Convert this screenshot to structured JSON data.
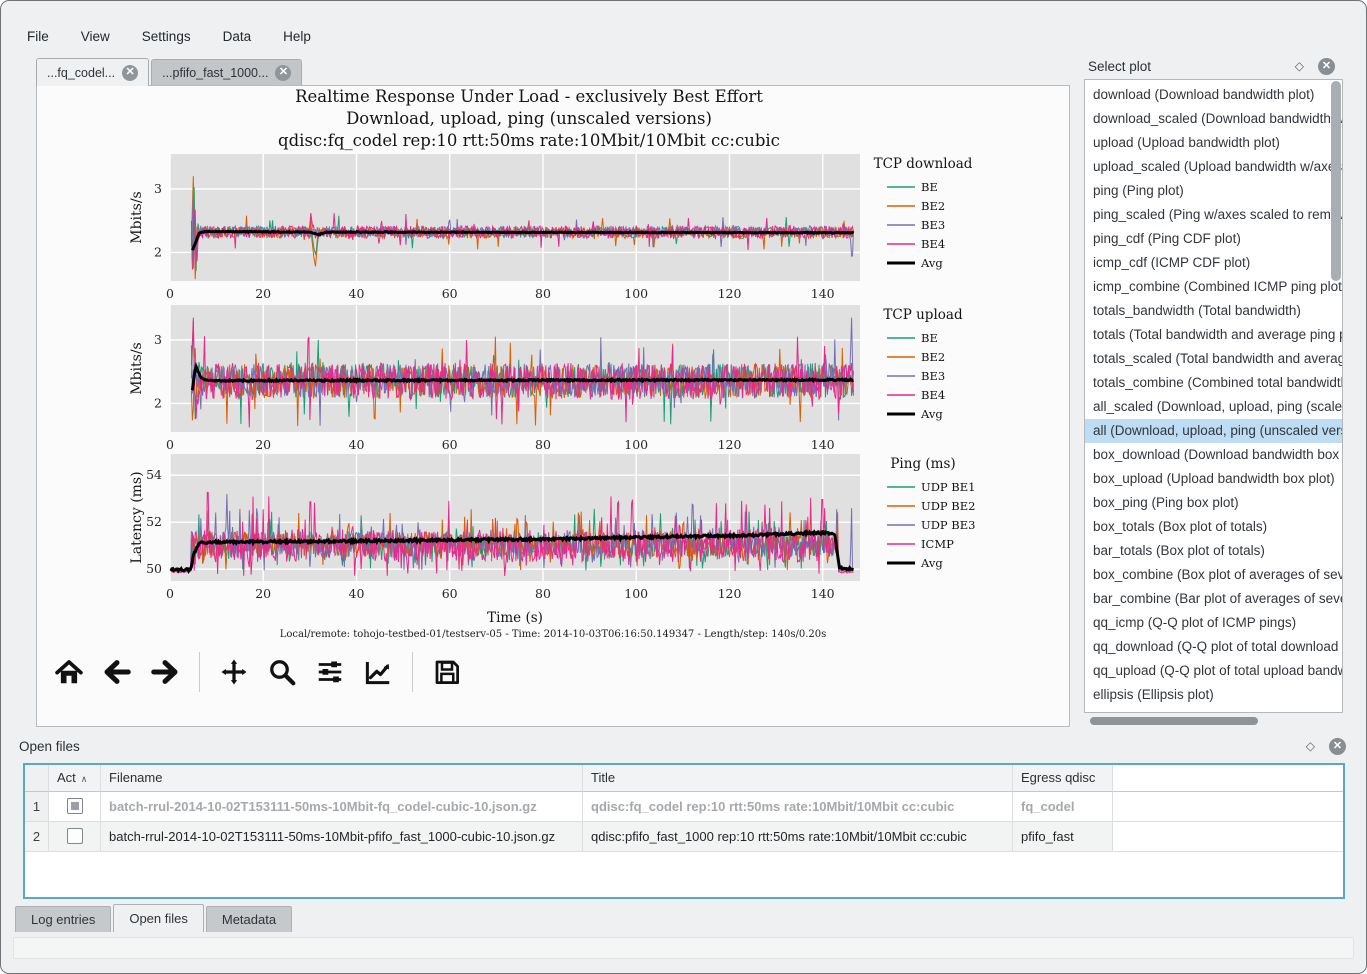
{
  "menu": {
    "items": [
      "File",
      "View",
      "Settings",
      "Data",
      "Help"
    ]
  },
  "tabs": [
    {
      "label": "...fq_codel...",
      "active": true
    },
    {
      "label": "...pfifo_fast_1000...",
      "active": false
    }
  ],
  "toolbar": {
    "icons": [
      "home",
      "back",
      "forward",
      "sep",
      "pan",
      "zoom",
      "subplots",
      "customize",
      "sep",
      "save"
    ]
  },
  "select_plot_panel": {
    "title": "Select plot",
    "items": [
      {
        "text": "download (Download bandwidth plot)"
      },
      {
        "text": "download_scaled (Download bandwidth w/axes scaled to remove outliers)"
      },
      {
        "text": "upload (Upload bandwidth plot)"
      },
      {
        "text": "upload_scaled (Upload bandwidth w/axes scaled to remove outliers)"
      },
      {
        "text": "ping (Ping plot)"
      },
      {
        "text": "ping_scaled (Ping w/axes scaled to remove outliers)"
      },
      {
        "text": "ping_cdf (Ping CDF plot)"
      },
      {
        "text": "icmp_cdf (ICMP CDF plot)"
      },
      {
        "text": "icmp_combine (Combined ICMP ping plot)"
      },
      {
        "text": "totals_bandwidth (Total bandwidth)"
      },
      {
        "text": "totals (Total bandwidth and average ping plot)"
      },
      {
        "text": "totals_scaled (Total bandwidth and average ping plot (scaled))"
      },
      {
        "text": "totals_combine (Combined total bandwidth and average ping)"
      },
      {
        "text": "all_scaled (Download, upload, ping (scaled versions))"
      },
      {
        "text": "all (Download, upload, ping (unscaled versions))",
        "selected": true
      },
      {
        "text": "box_download (Download bandwidth box plot)"
      },
      {
        "text": "box_upload (Upload bandwidth box plot)"
      },
      {
        "text": "box_ping (Ping box plot)"
      },
      {
        "text": "box_totals (Box plot of totals)"
      },
      {
        "text": "bar_totals (Box plot of totals)"
      },
      {
        "text": "box_combine (Box plot of averages of several tests)"
      },
      {
        "text": "bar_combine (Bar plot of averages of several tests)"
      },
      {
        "text": "qq_icmp (Q-Q plot of ICMP pings)"
      },
      {
        "text": "qq_download (Q-Q plot of total download bandwidth)"
      },
      {
        "text": "qq_upload (Q-Q plot of total upload bandwidth)"
      },
      {
        "text": "ellipsis (Ellipsis plot)"
      }
    ]
  },
  "open_files_panel": {
    "title": "Open files",
    "columns": {
      "act": "Act",
      "filename": "Filename",
      "title": "Title",
      "qdisc": "Egress qdisc"
    },
    "rows": [
      {
        "num": "1",
        "checked": "partial",
        "dimmed": true,
        "filename": "batch-rrul-2014-10-02T153111-50ms-10Mbit-fq_codel-cubic-10.json.gz",
        "title": "qdisc:fq_codel rep:10 rtt:50ms rate:10Mbit/10Mbit cc:cubic",
        "qdisc": "fq_codel"
      },
      {
        "num": "2",
        "checked": "none",
        "dimmed": false,
        "filename": "batch-rrul-2014-10-02T153111-50ms-10Mbit-pfifo_fast_1000-cubic-10.json.gz",
        "title": "qdisc:pfifo_fast_1000 rep:10 rtt:50ms rate:10Mbit/10Mbit cc:cubic",
        "qdisc": "pfifo_fast"
      }
    ]
  },
  "bottom_tabs": [
    {
      "label": "Log entries",
      "active": false
    },
    {
      "label": "Open files",
      "active": true
    },
    {
      "label": "Metadata",
      "active": false
    }
  ],
  "chart_data": {
    "type": "line",
    "titles": [
      "Realtime Response Under Load - exclusively Best Effort",
      "Download, upload, ping (unscaled versions)",
      "qdisc:fq_codel rep:10 rtt:50ms rate:10Mbit/10Mbit cc:cubic"
    ],
    "footer": "Local/remote: tohojo-testbed-01/testserv-05 - Time: 2014-10-03T06:16:50.149347 - Length/step: 140s/0.20s",
    "xlabel": "Time (s)",
    "x_range": [
      0,
      148
    ],
    "x_ticks": [
      0,
      20,
      40,
      60,
      80,
      100,
      120,
      140
    ],
    "time_step": 0.2,
    "data_start": 4.6,
    "data_end": 146.6,
    "plot_bg": "#e0e0e0",
    "grid_color": "#ffffff",
    "subplots": [
      {
        "legend_title": "TCP download",
        "ylabel": "Mbits/s",
        "ylim": [
          1.55,
          3.55
        ],
        "yticks": [
          2,
          3
        ],
        "clamp": [
          1.58,
          3.53
        ],
        "avg": {
          "name": "Avg",
          "color": "#000000",
          "seed": 11,
          "wiggle": 0.006,
          "keys": [
            [
              4.8,
              2.03
            ],
            [
              5.3,
              2.12
            ],
            [
              6.2,
              2.3
            ],
            [
              7.5,
              2.33
            ],
            [
              30,
              2.32
            ],
            [
              31.8,
              2.28
            ],
            [
              33.5,
              2.32
            ],
            [
              146.4,
              2.31
            ]
          ]
        },
        "series": [
          {
            "name": "BE",
            "color": "#1b9e77",
            "seed": 1,
            "base": 2.32,
            "amp": 0.085,
            "spike_p": 0.02,
            "spike_amp": 0.18,
            "events": [
              [
                [
                  4.6,
                  2.3
                ],
                [
                  4.9,
                  1.6
                ],
                [
                  5.1,
                  3.55
                ],
                [
                  5.5,
                  1.45
                ],
                [
                  5.9,
                  2.5
                ],
                [
                  6.3,
                  2.32
                ]
              ],
              [
                [
                  30.4,
                  2.3
                ],
                [
                  30.9,
                  2.05
                ],
                [
                  31.3,
                  1.95
                ],
                [
                  31.7,
                  2.3
                ]
              ]
            ]
          },
          {
            "name": "BE2",
            "color": "#d95f02",
            "seed": 2,
            "base": 2.31,
            "amp": 0.09,
            "spike_p": 0.02,
            "spike_amp": 0.18,
            "events": [
              [
                [
                  4.6,
                  2.2
                ],
                [
                  5.0,
                  3.2
                ],
                [
                  5.4,
                  1.4
                ],
                [
                  5.8,
                  2.4
                ],
                [
                  6.2,
                  2.33
                ]
              ],
              [
                [
                  30.3,
                  2.3
                ],
                [
                  30.8,
                  1.95
                ],
                [
                  31.2,
                  1.78
                ],
                [
                  31.6,
                  2.1
                ],
                [
                  31.9,
                  2.32
                ]
              ]
            ]
          },
          {
            "name": "BE3",
            "color": "#7570b3",
            "seed": 3,
            "base": 2.33,
            "amp": 0.09,
            "spike_p": 0.02,
            "spike_amp": 0.16,
            "events": [
              [
                [
                  4.6,
                  2.1
                ],
                [
                  5.0,
                  2.9
                ],
                [
                  5.4,
                  1.8
                ],
                [
                  5.9,
                  2.35
                ]
              ],
              [
                [
                  145.9,
                  2.3
                ],
                [
                  146.3,
                  1.82
                ],
                [
                  146.6,
                  2.2
                ]
              ]
            ]
          },
          {
            "name": "BE4",
            "color": "#e7298a",
            "seed": 4,
            "base": 2.32,
            "amp": 0.1,
            "spike_p": 0.03,
            "spike_amp": 0.2,
            "events": [
              [
                [
                  4.6,
                  2.5
                ],
                [
                  4.9,
                  1.35
                ],
                [
                  5.3,
                  3.0
                ],
                [
                  5.7,
                  1.7
                ],
                [
                  6.1,
                  2.35
                ]
              ],
              [
                [
                  29.9,
                  2.35
                ],
                [
                  30.2,
                  2.62
                ],
                [
                  30.6,
                  2.4
                ]
              ]
            ]
          }
        ]
      },
      {
        "legend_title": "TCP upload",
        "ylabel": "Mbits/s",
        "ylim": [
          1.55,
          3.55
        ],
        "yticks": [
          2,
          3
        ],
        "clamp": [
          1.58,
          3.53
        ],
        "avg": {
          "name": "Avg",
          "color": "#000000",
          "seed": 12,
          "wiggle": 0.012,
          "keys": [
            [
              4.8,
              2.2
            ],
            [
              5.5,
              2.6
            ],
            [
              6.5,
              2.42
            ],
            [
              8,
              2.36
            ],
            [
              146.4,
              2.37
            ]
          ]
        },
        "series": [
          {
            "name": "BE",
            "color": "#1b9e77",
            "seed": 5,
            "base": 2.36,
            "amp": 0.27,
            "spike_p": 0.03,
            "spike_amp": 0.45,
            "events": [
              [
                [
                  4.6,
                  2.4
                ],
                [
                  5.0,
                  3.3
                ],
                [
                  5.4,
                  1.75
                ],
                [
                  5.8,
                  2.5
                ]
              ]
            ]
          },
          {
            "name": "BE2",
            "color": "#d95f02",
            "seed": 6,
            "base": 2.35,
            "amp": 0.27,
            "spike_p": 0.03,
            "spike_amp": 0.45,
            "events": [
              [
                [
                  4.6,
                  2.2
                ],
                [
                  4.9,
                  1.5
                ],
                [
                  5.3,
                  3.1
                ],
                [
                  5.7,
                  2.2
                ]
              ]
            ]
          },
          {
            "name": "BE3",
            "color": "#7570b3",
            "seed": 7,
            "base": 2.36,
            "amp": 0.27,
            "spike_p": 0.03,
            "spike_amp": 0.45,
            "events": [
              [
                [
                  145.8,
                  2.4
                ],
                [
                  146.2,
                  3.35
                ],
                [
                  146.6,
                  2.0
                ]
              ]
            ]
          },
          {
            "name": "BE4",
            "color": "#e7298a",
            "seed": 8,
            "base": 2.35,
            "amp": 0.29,
            "spike_p": 0.04,
            "spike_amp": 0.45,
            "events": [
              [
                [
                  4.6,
                  2.6
                ],
                [
                  5.0,
                  3.35
                ],
                [
                  5.5,
                  1.6
                ],
                [
                  6.0,
                  2.4
                ]
              ]
            ]
          }
        ]
      },
      {
        "legend_title": "Ping (ms)",
        "ylabel": "Latency (ms)",
        "ylim": [
          49.5,
          54.9
        ],
        "yticks": [
          50,
          52,
          54
        ],
        "clamp": [
          49.55,
          54.85
        ],
        "has_xlabel": true,
        "avg": {
          "name": "Avg",
          "color": "#000000",
          "seed": 13,
          "wiggle": 0.05,
          "keys": [
            [
              0.2,
              49.98
            ],
            [
              4.5,
              49.98
            ],
            [
              5.0,
              50.6
            ],
            [
              6.3,
              51.15
            ],
            [
              40,
              51.2
            ],
            [
              80,
              51.28
            ],
            [
              120,
              51.42
            ],
            [
              140,
              51.55
            ],
            [
              142.6,
              51.5
            ],
            [
              143.6,
              50.05
            ],
            [
              146.6,
              50.0
            ]
          ]
        },
        "series": [
          {
            "name": "UDP BE1",
            "color": "#1b9e77",
            "seed": 9,
            "base": 51.05,
            "amp": 0.55,
            "spike_p": 0.05,
            "spike_amp": 1.1,
            "spike_up": true,
            "down_p": 0.035,
            "down_amp": 0.6,
            "flat": {
              "before": 4.6,
              "after": 143.4,
              "base": 49.95,
              "amp": 0.04
            }
          },
          {
            "name": "UDP BE2",
            "color": "#d95f02",
            "seed": 10,
            "base": 51.05,
            "amp": 0.55,
            "spike_p": 0.05,
            "spike_amp": 1.1,
            "spike_up": true,
            "down_p": 0.035,
            "down_amp": 0.6,
            "flat": {
              "before": 4.6,
              "after": 143.4,
              "base": 49.95,
              "amp": 0.04
            }
          },
          {
            "name": "UDP BE3",
            "color": "#7570b3",
            "seed": 14,
            "base": 51.05,
            "amp": 0.55,
            "spike_p": 0.05,
            "spike_amp": 1.2,
            "spike_up": true,
            "down_p": 0.035,
            "down_amp": 0.6,
            "flat": {
              "before": 4.6,
              "after": 143.4,
              "base": 49.95,
              "amp": 0.04
            },
            "events": [
              [
                [
                  11.9,
                  51.0
                ],
                [
                  12.2,
                  53.2
                ],
                [
                  12.5,
                  51.0
                ]
              ],
              [
                [
                  111.8,
                  51.3
                ],
                [
                  112.1,
                  53.5
                ],
                [
                  112.4,
                  51.2
                ]
              ],
              [
                [
                  145.9,
                  50.0
                ],
                [
                  146.2,
                  52.6
                ],
                [
                  146.4,
                  50.0
                ]
              ]
            ]
          },
          {
            "name": "ICMP",
            "color": "#e7298a",
            "seed": 15,
            "base": 51.0,
            "amp": 0.7,
            "spike_p": 0.06,
            "spike_amp": 1.6,
            "spike_up": true,
            "down_p": 0.05,
            "down_amp": 0.8,
            "flat": {
              "before": 4.6,
              "after": 143.4,
              "base": 49.88,
              "amp": 0.04
            },
            "events": [
              [
                [
                  7.8,
                  51.0
                ],
                [
                  8.1,
                  54.4
                ],
                [
                  8.4,
                  51.0
                ]
              ],
              [
                [
                  29.8,
                  51.0
                ],
                [
                  30.1,
                  53.8
                ],
                [
                  30.4,
                  51.0
                ]
              ],
              [
                [
                  95.8,
                  51.0
                ],
                [
                  96.1,
                  53.7
                ],
                [
                  96.4,
                  51.2
                ]
              ],
              [
                [
                  139.6,
                  51.3
                ],
                [
                  139.9,
                  53.8
                ],
                [
                  140.2,
                  51.3
                ]
              ]
            ]
          }
        ]
      }
    ]
  }
}
